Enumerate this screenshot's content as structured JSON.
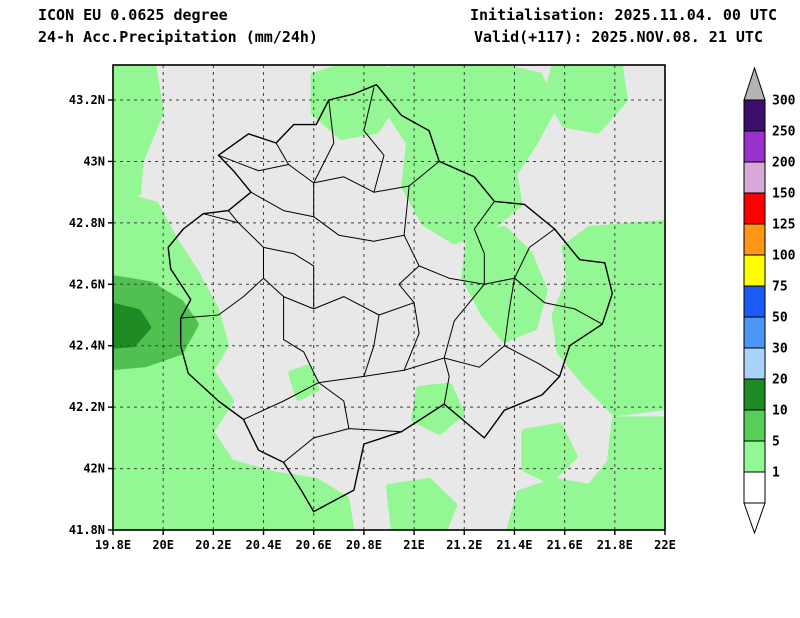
{
  "header": {
    "model": "ICON EU 0.0625 degree",
    "product": "24-h Acc.Precipitation (mm/24h)",
    "initialisation": "Initialisation: 2025.11.04. 00 UTC",
    "valid": "Valid(+117): 2025.NOV.08. 21 UTC"
  },
  "colors": {
    "page_background": "#ffffff",
    "map_background": "#e8e8e8",
    "grid": "#3f3f3f",
    "border": "#000000",
    "precip_bands": {
      "1-5": "#93f793",
      "5-10": "#50c050",
      "10-20": "#1f8b24"
    }
  },
  "axes": {
    "x_ticks": [
      {
        "value": 19.8,
        "label": "19.8E"
      },
      {
        "value": 20.0,
        "label": "20E"
      },
      {
        "value": 20.2,
        "label": "20.2E"
      },
      {
        "value": 20.4,
        "label": "20.4E"
      },
      {
        "value": 20.6,
        "label": "20.6E"
      },
      {
        "value": 20.8,
        "label": "20.8E"
      },
      {
        "value": 21.0,
        "label": "21E"
      },
      {
        "value": 21.2,
        "label": "21.2E"
      },
      {
        "value": 21.4,
        "label": "21.4E"
      },
      {
        "value": 21.6,
        "label": "21.6E"
      },
      {
        "value": 21.8,
        "label": "21.8E"
      },
      {
        "value": 22.0,
        "label": "22E"
      }
    ],
    "y_ticks": [
      {
        "value": 43.2,
        "label": "43.2N"
      },
      {
        "value": 43.0,
        "label": "43N"
      },
      {
        "value": 42.8,
        "label": "42.8N"
      },
      {
        "value": 42.6,
        "label": "42.6N"
      },
      {
        "value": 42.4,
        "label": "42.4N"
      },
      {
        "value": 42.2,
        "label": "42.2N"
      },
      {
        "value": 42.0,
        "label": "42N"
      },
      {
        "value": 41.8,
        "label": "41.8N"
      }
    ],
    "x_grid": [
      20.0,
      20.2,
      20.4,
      20.6,
      20.8,
      21.0,
      21.2,
      21.4,
      21.6,
      21.8
    ],
    "y_grid": [
      42.0,
      42.2,
      42.4,
      42.6,
      42.8,
      43.0,
      43.2
    ]
  },
  "colorbar": {
    "top_arrow_color": "#b4b4b4",
    "bottom_arrow_color": "#ffffff",
    "segments": [
      {
        "top_label": "300",
        "color": "#3c0f6e"
      },
      {
        "top_label": "250",
        "color": "#9932cc"
      },
      {
        "top_label": "200",
        "color": "#d8a8d8"
      },
      {
        "top_label": "150",
        "color": "#ff0000"
      },
      {
        "top_label": "125",
        "color": "#ff9614"
      },
      {
        "top_label": "100",
        "color": "#ffff00"
      },
      {
        "top_label": "75",
        "color": "#1a5af5"
      },
      {
        "top_label": "50",
        "color": "#4d94f7"
      },
      {
        "top_label": "30",
        "color": "#aad4f7"
      },
      {
        "top_label": "20",
        "color": "#1f8b24"
      },
      {
        "top_label": "10",
        "color": "#57cf57"
      },
      {
        "top_label": "5",
        "color": "#93f793"
      },
      {
        "top_label": "1",
        "color": "#ffffff"
      }
    ]
  },
  "chart_data": {
    "type": "heatmap",
    "title": "24-h Acc.Precipitation (mm/24h)",
    "model": "ICON EU 0.0625 degree",
    "initialisation": "2025.11.04. 00 UTC",
    "valid": "2025.NOV.08. 21 UTC",
    "lead_time_hours": 117,
    "units": "mm/24h",
    "lon_range": [
      19.8,
      22.0
    ],
    "lat_range": [
      41.8,
      43.314
    ],
    "colorbar_levels": [
      1,
      5,
      10,
      20,
      30,
      50,
      75,
      100,
      125,
      150,
      200,
      250,
      300
    ],
    "max_band_on_map": "10-20",
    "precip_regions": [
      {
        "band": "1-5",
        "name": "west-north-strip",
        "points": [
          [
            19.8,
            43.314
          ],
          [
            19.96,
            43.314
          ],
          [
            19.99,
            43.16
          ],
          [
            19.91,
            43.0
          ],
          [
            19.9,
            42.9
          ],
          [
            19.8,
            42.88
          ]
        ]
      },
      {
        "band": "1-5",
        "name": "west-south-mass",
        "points": [
          [
            19.8,
            42.9
          ],
          [
            19.97,
            42.86
          ],
          [
            20.05,
            42.74
          ],
          [
            20.13,
            42.64
          ],
          [
            20.21,
            42.52
          ],
          [
            20.25,
            42.4
          ],
          [
            20.19,
            42.32
          ],
          [
            20.27,
            42.22
          ],
          [
            20.19,
            42.12
          ],
          [
            20.27,
            42.02
          ],
          [
            20.45,
            41.98
          ],
          [
            20.61,
            41.96
          ],
          [
            20.73,
            41.9
          ],
          [
            20.75,
            41.8
          ],
          [
            19.8,
            41.8
          ]
        ]
      },
      {
        "band": "1-5",
        "name": "north-center-blob",
        "points": [
          [
            20.6,
            43.28
          ],
          [
            20.73,
            43.314
          ],
          [
            20.89,
            43.3
          ],
          [
            20.93,
            43.2
          ],
          [
            20.85,
            43.1
          ],
          [
            20.71,
            43.08
          ],
          [
            20.6,
            43.16
          ]
        ]
      },
      {
        "band": "1-5",
        "name": "north-east-mass",
        "points": [
          [
            20.92,
            43.314
          ],
          [
            21.32,
            43.314
          ],
          [
            21.5,
            43.28
          ],
          [
            21.56,
            43.18
          ],
          [
            21.48,
            43.06
          ],
          [
            21.4,
            42.96
          ],
          [
            21.42,
            42.86
          ],
          [
            21.3,
            42.78
          ],
          [
            21.16,
            42.74
          ],
          [
            21.04,
            42.8
          ],
          [
            20.96,
            42.92
          ],
          [
            20.98,
            43.06
          ],
          [
            20.9,
            43.16
          ],
          [
            20.88,
            43.24
          ]
        ]
      },
      {
        "band": "1-5",
        "name": "northeast-corner-blob",
        "points": [
          [
            21.56,
            43.314
          ],
          [
            21.82,
            43.314
          ],
          [
            21.84,
            43.2
          ],
          [
            21.73,
            43.1
          ],
          [
            21.6,
            43.12
          ],
          [
            21.53,
            43.22
          ]
        ]
      },
      {
        "band": "1-5",
        "name": "east-edge-band",
        "points": [
          [
            21.7,
            42.78
          ],
          [
            22.0,
            42.8
          ],
          [
            22.0,
            42.2
          ],
          [
            21.8,
            42.18
          ],
          [
            21.68,
            42.28
          ],
          [
            21.58,
            42.38
          ],
          [
            21.56,
            42.5
          ],
          [
            21.62,
            42.62
          ],
          [
            21.6,
            42.72
          ]
        ]
      },
      {
        "band": "1-5",
        "name": "gjilan-blob",
        "points": [
          [
            21.22,
            42.76
          ],
          [
            21.36,
            42.78
          ],
          [
            21.46,
            42.7
          ],
          [
            21.52,
            42.58
          ],
          [
            21.48,
            42.46
          ],
          [
            21.36,
            42.42
          ],
          [
            21.28,
            42.5
          ],
          [
            21.2,
            42.62
          ]
        ]
      },
      {
        "band": "1-5",
        "name": "southeast-corner",
        "points": [
          [
            21.8,
            42.16
          ],
          [
            22.0,
            42.16
          ],
          [
            22.0,
            41.8
          ],
          [
            21.38,
            41.8
          ],
          [
            21.42,
            41.92
          ],
          [
            21.56,
            41.96
          ],
          [
            21.7,
            41.94
          ],
          [
            21.78,
            42.02
          ]
        ]
      },
      {
        "band": "1-5",
        "name": "south-center-blob",
        "points": [
          [
            20.9,
            41.94
          ],
          [
            21.06,
            41.96
          ],
          [
            21.16,
            41.88
          ],
          [
            21.12,
            41.8
          ],
          [
            20.92,
            41.8
          ]
        ]
      },
      {
        "band": "1-5",
        "name": "small-dot-west",
        "points": [
          [
            20.51,
            42.31
          ],
          [
            20.58,
            42.33
          ],
          [
            20.61,
            42.26
          ],
          [
            20.54,
            42.23
          ]
        ]
      },
      {
        "band": "1-5",
        "name": "small-blob-southcentral",
        "points": [
          [
            21.02,
            42.26
          ],
          [
            21.14,
            42.27
          ],
          [
            21.19,
            42.18
          ],
          [
            21.1,
            42.12
          ],
          [
            21.0,
            42.16
          ]
        ]
      },
      {
        "band": "1-5",
        "name": "small-blob-southeast",
        "points": [
          [
            21.44,
            42.12
          ],
          [
            21.58,
            42.14
          ],
          [
            21.64,
            42.04
          ],
          [
            21.54,
            41.96
          ],
          [
            21.44,
            42.0
          ]
        ]
      },
      {
        "band": "5-10",
        "name": "west-edge-moderate",
        "points": [
          [
            19.8,
            42.62
          ],
          [
            19.95,
            42.6
          ],
          [
            20.07,
            42.54
          ],
          [
            20.13,
            42.47
          ],
          [
            20.07,
            42.38
          ],
          [
            19.93,
            42.34
          ],
          [
            19.8,
            42.33
          ]
        ]
      },
      {
        "band": "10-20",
        "name": "west-edge-core",
        "points": [
          [
            19.8,
            42.53
          ],
          [
            19.9,
            42.51
          ],
          [
            19.94,
            42.46
          ],
          [
            19.88,
            42.405
          ],
          [
            19.8,
            42.4
          ]
        ]
      }
    ]
  },
  "geometry": {
    "kosovo_outline": [
      [
        20.85,
        43.25
      ],
      [
        20.95,
        43.15
      ],
      [
        21.06,
        43.1
      ],
      [
        21.1,
        43.0
      ],
      [
        21.24,
        42.95
      ],
      [
        21.32,
        42.87
      ],
      [
        21.44,
        42.86
      ],
      [
        21.56,
        42.78
      ],
      [
        21.66,
        42.68
      ],
      [
        21.76,
        42.67
      ],
      [
        21.79,
        42.57
      ],
      [
        21.75,
        42.47
      ],
      [
        21.62,
        42.4
      ],
      [
        21.58,
        42.3
      ],
      [
        21.51,
        42.24
      ],
      [
        21.36,
        42.19
      ],
      [
        21.28,
        42.1
      ],
      [
        21.12,
        42.21
      ],
      [
        20.95,
        42.12
      ],
      [
        20.8,
        42.08
      ],
      [
        20.76,
        41.93
      ],
      [
        20.6,
        41.86
      ],
      [
        20.55,
        41.93
      ],
      [
        20.48,
        42.02
      ],
      [
        20.38,
        42.06
      ],
      [
        20.32,
        42.16
      ],
      [
        20.22,
        42.22
      ],
      [
        20.1,
        42.31
      ],
      [
        20.07,
        42.4
      ],
      [
        20.07,
        42.49
      ],
      [
        20.11,
        42.55
      ],
      [
        20.03,
        42.65
      ],
      [
        20.02,
        42.72
      ],
      [
        20.08,
        42.78
      ],
      [
        20.16,
        42.83
      ],
      [
        20.26,
        42.84
      ],
      [
        20.35,
        42.9
      ],
      [
        20.28,
        42.97
      ],
      [
        20.22,
        43.02
      ],
      [
        20.34,
        43.09
      ],
      [
        20.45,
        43.06
      ],
      [
        20.52,
        43.12
      ],
      [
        20.61,
        43.12
      ],
      [
        20.66,
        43.2
      ],
      [
        20.76,
        43.22
      ]
    ],
    "district_lines": [
      [
        [
          20.22,
          43.02
        ],
        [
          20.38,
          42.97
        ],
        [
          20.5,
          42.99
        ],
        [
          20.6,
          42.93
        ],
        [
          20.72,
          42.95
        ],
        [
          20.84,
          42.9
        ],
        [
          20.98,
          42.92
        ],
        [
          21.1,
          43.0
        ]
      ],
      [
        [
          20.84,
          43.24
        ],
        [
          20.8,
          43.1
        ],
        [
          20.88,
          43.02
        ],
        [
          20.84,
          42.9
        ]
      ],
      [
        [
          20.35,
          42.9
        ],
        [
          20.48,
          42.84
        ],
        [
          20.6,
          42.82
        ],
        [
          20.7,
          42.76
        ],
        [
          20.84,
          42.74
        ],
        [
          20.96,
          42.76
        ]
      ],
      [
        [
          20.16,
          42.83
        ],
        [
          20.3,
          42.8
        ],
        [
          20.4,
          42.72
        ],
        [
          20.4,
          42.62
        ],
        [
          20.48,
          42.56
        ]
      ],
      [
        [
          20.07,
          42.49
        ],
        [
          20.22,
          42.5
        ],
        [
          20.32,
          42.56
        ],
        [
          20.4,
          42.62
        ]
      ],
      [
        [
          20.48,
          42.56
        ],
        [
          20.6,
          42.52
        ],
        [
          20.72,
          42.56
        ],
        [
          20.86,
          42.5
        ],
        [
          21.0,
          42.54
        ]
      ],
      [
        [
          20.96,
          42.76
        ],
        [
          21.02,
          42.66
        ],
        [
          21.14,
          42.62
        ],
        [
          21.28,
          42.6
        ],
        [
          21.4,
          42.62
        ],
        [
          21.52,
          42.54
        ],
        [
          21.64,
          42.52
        ],
        [
          21.75,
          42.47
        ]
      ],
      [
        [
          20.98,
          42.92
        ],
        [
          20.96,
          42.76
        ]
      ],
      [
        [
          20.6,
          42.93
        ],
        [
          20.6,
          42.82
        ]
      ],
      [
        [
          21.32,
          42.87
        ],
        [
          21.24,
          42.78
        ],
        [
          21.28,
          42.7
        ],
        [
          21.28,
          42.6
        ]
      ],
      [
        [
          21.56,
          42.78
        ],
        [
          21.46,
          42.72
        ],
        [
          21.4,
          42.62
        ]
      ],
      [
        [
          20.32,
          42.16
        ],
        [
          20.48,
          42.22
        ],
        [
          20.62,
          42.28
        ],
        [
          20.8,
          42.3
        ],
        [
          20.96,
          42.32
        ],
        [
          21.12,
          42.36
        ],
        [
          21.26,
          42.33
        ],
        [
          21.36,
          42.4
        ],
        [
          21.5,
          42.34
        ],
        [
          21.58,
          42.3
        ]
      ],
      [
        [
          20.48,
          42.02
        ],
        [
          20.6,
          42.1
        ],
        [
          20.74,
          42.13
        ],
        [
          20.95,
          42.12
        ]
      ],
      [
        [
          20.62,
          42.28
        ],
        [
          20.56,
          42.38
        ],
        [
          20.48,
          42.42
        ],
        [
          20.48,
          42.56
        ]
      ],
      [
        [
          20.96,
          42.32
        ],
        [
          21.02,
          42.44
        ],
        [
          21.0,
          42.54
        ]
      ],
      [
        [
          21.12,
          42.36
        ],
        [
          21.16,
          42.48
        ],
        [
          21.28,
          42.6
        ]
      ],
      [
        [
          20.8,
          42.3
        ],
        [
          20.84,
          42.4
        ],
        [
          20.86,
          42.5
        ]
      ],
      [
        [
          21.4,
          42.62
        ],
        [
          21.38,
          42.52
        ],
        [
          21.36,
          42.4
        ]
      ],
      [
        [
          20.74,
          42.13
        ],
        [
          20.72,
          42.22
        ],
        [
          20.62,
          42.28
        ]
      ],
      [
        [
          21.02,
          42.66
        ],
        [
          20.94,
          42.6
        ],
        [
          21.0,
          42.54
        ]
      ],
      [
        [
          20.4,
          42.72
        ],
        [
          20.52,
          42.7
        ],
        [
          20.6,
          42.66
        ],
        [
          20.6,
          42.52
        ]
      ],
      [
        [
          21.12,
          42.21
        ],
        [
          21.14,
          42.3
        ],
        [
          21.12,
          42.36
        ]
      ],
      [
        [
          20.66,
          43.2
        ],
        [
          20.68,
          43.06
        ],
        [
          20.6,
          42.93
        ]
      ],
      [
        [
          20.45,
          43.06
        ],
        [
          20.5,
          42.99
        ]
      ],
      [
        [
          20.26,
          42.84
        ],
        [
          20.3,
          42.8
        ]
      ]
    ]
  }
}
